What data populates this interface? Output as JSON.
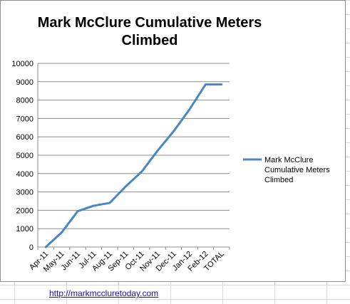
{
  "chart_data": {
    "type": "line",
    "title": "Mark McClure Cumulative Meters Climbed",
    "xlabel": "",
    "ylabel": "",
    "categories": [
      "Apr-11",
      "May-11",
      "Jun-11",
      "Jul-11",
      "Aug-11",
      "Sep-11",
      "Oct-11",
      "Nov-11",
      "Dec-11",
      "Jan-12",
      "Feb-12",
      "TOTAL"
    ],
    "series": [
      {
        "name": "Mark McClure Cumulative Meters Climbed",
        "values": [
          0,
          800,
          1950,
          2250,
          2400,
          3300,
          4100,
          5250,
          6300,
          7500,
          8850,
          8850
        ]
      }
    ],
    "ylim": [
      0,
      10000
    ],
    "yticks": [
      0,
      1000,
      2000,
      3000,
      4000,
      5000,
      6000,
      7000,
      8000,
      9000,
      10000
    ],
    "grid": true,
    "legend": "right",
    "colors": {
      "series": "#4a86c5",
      "grid": "#8c8c8c"
    }
  },
  "footer": {
    "link_text": "http://markmccluretoday.com"
  }
}
